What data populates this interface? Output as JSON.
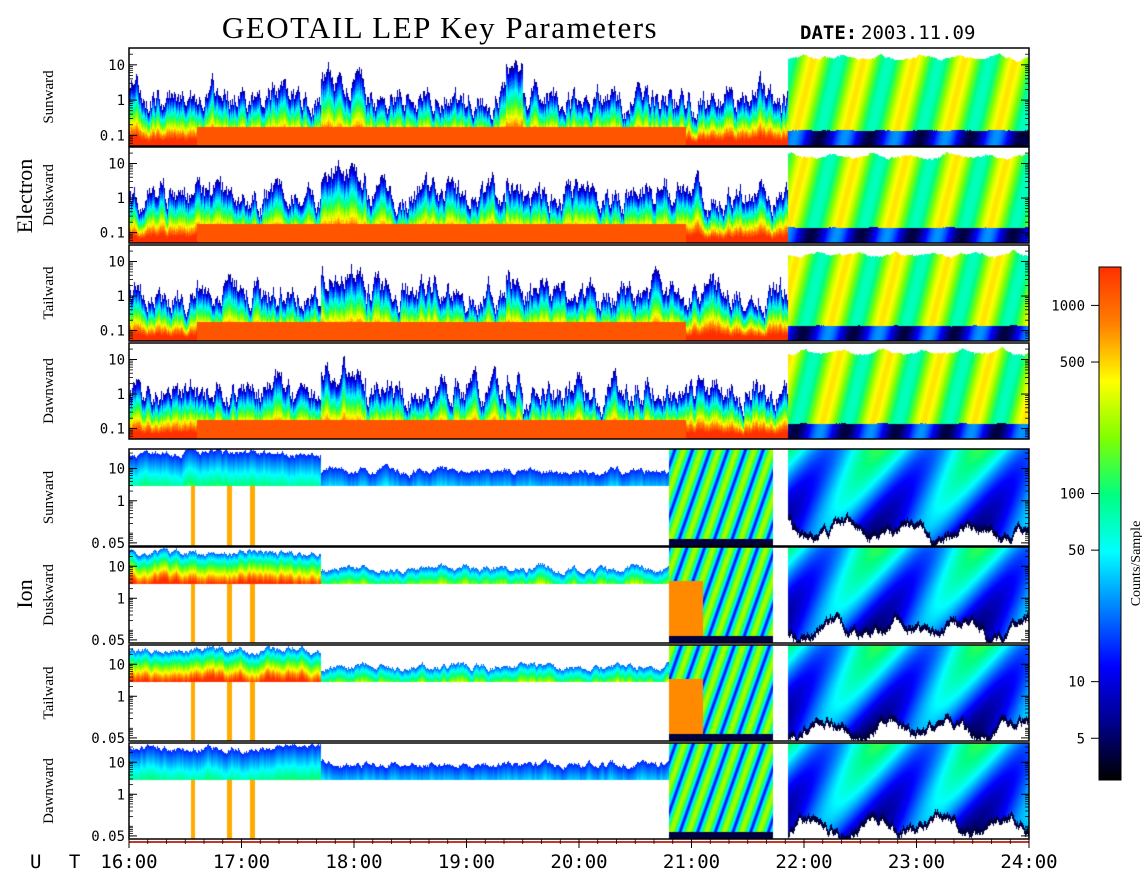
{
  "header": {
    "title": "GEOTAIL LEP Key Parameters",
    "date_label": "DATE:",
    "date_value": "2003.11.09"
  },
  "groups": [
    {
      "label": "Electron"
    },
    {
      "label": "Ion"
    }
  ],
  "colors": {
    "palette": [
      "#000000",
      "#00008b",
      "#0000ff",
      "#0080ff",
      "#00ffff",
      "#00ff80",
      "#80ff00",
      "#ffff00",
      "#ff8000",
      "#ff3000"
    ],
    "frame": "#000000",
    "background": "#ffffff",
    "time_bar": "#c0392b"
  },
  "chart_data": {
    "type": "heatmap",
    "title": "GEOTAIL LEP Key Parameters",
    "xlabel": "U T",
    "x_ticks": [
      "16:00",
      "17:00",
      "18:00",
      "19:00",
      "20:00",
      "21:00",
      "22:00",
      "23:00",
      "24:00"
    ],
    "x_range_hours": [
      16,
      24
    ],
    "colorbar": {
      "label": "Counts/Sample",
      "scale": "log",
      "range": [
        3,
        1600
      ],
      "ticks": [
        {
          "value": 5,
          "label": "5"
        },
        {
          "value": 10,
          "label": "10"
        },
        {
          "value": 50,
          "label": "50"
        },
        {
          "value": 100,
          "label": "100"
        },
        {
          "value": 500,
          "label": "500"
        },
        {
          "value": 1000,
          "label": "1000"
        }
      ]
    },
    "panels": [
      {
        "group": "Electron",
        "direction": "Sunward",
        "y_scale": "log",
        "y_range": [
          0.05,
          30
        ],
        "y_ticks": [
          {
            "value": 10,
            "label": "10"
          },
          {
            "value": 1,
            "label": "1"
          },
          {
            "value": 0.1,
            "label": "0.1"
          }
        ]
      },
      {
        "group": "Electron",
        "direction": "Duskward",
        "y_scale": "log",
        "y_range": [
          0.05,
          30
        ],
        "y_ticks": [
          {
            "value": 10,
            "label": "10"
          },
          {
            "value": 1,
            "label": "1"
          },
          {
            "value": 0.1,
            "label": "0.1"
          }
        ]
      },
      {
        "group": "Electron",
        "direction": "Tailward",
        "y_scale": "log",
        "y_range": [
          0.05,
          30
        ],
        "y_ticks": [
          {
            "value": 10,
            "label": "10"
          },
          {
            "value": 1,
            "label": "1"
          },
          {
            "value": 0.1,
            "label": "0.1"
          }
        ]
      },
      {
        "group": "Electron",
        "direction": "Dawnward",
        "y_scale": "log",
        "y_range": [
          0.05,
          30
        ],
        "y_ticks": [
          {
            "value": 10,
            "label": "10"
          },
          {
            "value": 1,
            "label": "1"
          },
          {
            "value": 0.1,
            "label": "0.1"
          }
        ]
      },
      {
        "group": "Ion",
        "direction": "Sunward",
        "y_scale": "log",
        "y_range": [
          0.04,
          40
        ],
        "y_ticks": [
          {
            "value": 10,
            "label": "10"
          },
          {
            "value": 1,
            "label": "1"
          },
          {
            "value": 0.05,
            "label": "0.05"
          }
        ]
      },
      {
        "group": "Ion",
        "direction": "Duskward",
        "y_scale": "log",
        "y_range": [
          0.04,
          40
        ],
        "y_ticks": [
          {
            "value": 10,
            "label": "10"
          },
          {
            "value": 1,
            "label": "1"
          },
          {
            "value": 0.05,
            "label": "0.05"
          }
        ]
      },
      {
        "group": "Ion",
        "direction": "Tailward",
        "y_scale": "log",
        "y_range": [
          0.04,
          40
        ],
        "y_ticks": [
          {
            "value": 10,
            "label": "10"
          },
          {
            "value": 1,
            "label": "1"
          },
          {
            "value": 0.05,
            "label": "0.05"
          }
        ]
      },
      {
        "group": "Ion",
        "direction": "Dawnward",
        "y_scale": "log",
        "y_range": [
          0.04,
          40
        ],
        "y_ticks": [
          {
            "value": 10,
            "label": "10"
          },
          {
            "value": 1,
            "label": "1"
          },
          {
            "value": 0.05,
            "label": "0.05"
          }
        ]
      }
    ]
  }
}
